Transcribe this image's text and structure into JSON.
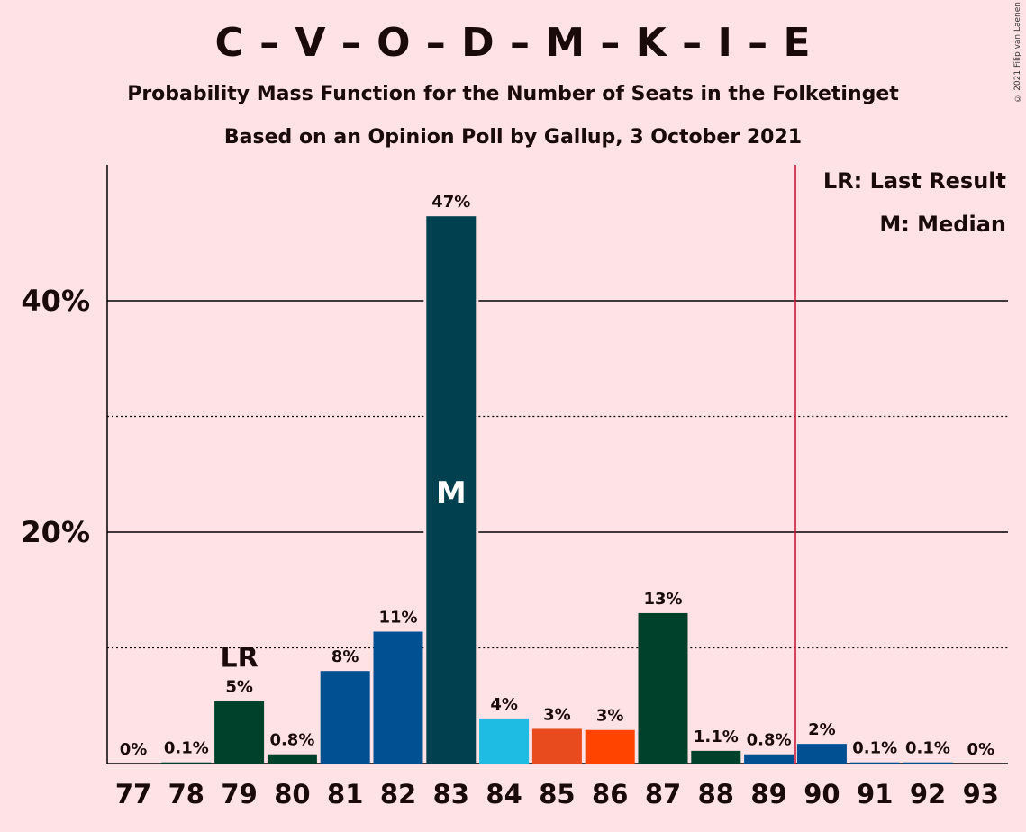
{
  "chart_data": {
    "type": "bar",
    "title": "C – V – O – D – M – K – I – E",
    "subtitle": "Probability Mass Function for the Number of Seats in the Folketinget",
    "subtitle2": "Based on an Opinion Poll by Gallup, 3 October 2021",
    "copyright": "© 2021 Filip van Laenen",
    "categories": [
      "77",
      "78",
      "79",
      "80",
      "81",
      "82",
      "83",
      "84",
      "85",
      "86",
      "87",
      "88",
      "89",
      "90",
      "91",
      "92",
      "93"
    ],
    "values": [
      0,
      0.1,
      5.4,
      0.8,
      8.0,
      11.4,
      47.3,
      3.9,
      3.0,
      2.9,
      13.0,
      1.1,
      0.8,
      1.7,
      0.1,
      0.1,
      0
    ],
    "data_labels": [
      "0%",
      "0.1%",
      "5%",
      "0.8%",
      "8%",
      "11%",
      "47%",
      "4%",
      "3%",
      "3%",
      "13%",
      "1.1%",
      "0.8%",
      "2%",
      "0.1%",
      "0.1%",
      "0%"
    ],
    "bar_colors": [
      "#00412C",
      "#00412C",
      "#00412C",
      "#00412C",
      "#005092",
      "#005092",
      "#00404F",
      "#1EBCE3",
      "#E84C1E",
      "#FF4400",
      "#00412C",
      "#00412C",
      "#005092",
      "#005092",
      "#005092",
      "#005092",
      "#005092"
    ],
    "ylim": [
      0,
      52
    ],
    "yticks_major": [
      20,
      40
    ],
    "ytick_labels": [
      "20%",
      "40%"
    ],
    "yticks_minor": [
      10,
      30
    ],
    "last_result_seat": "79",
    "last_result_label": "LR",
    "median_seat": "83",
    "median_label": "M",
    "majority_line_after_seat": "89",
    "majority_line_color": "#C8102E",
    "legend": [
      "LR: Last Result",
      "M: Median"
    ],
    "legend_position": "top-right",
    "grid": true
  }
}
